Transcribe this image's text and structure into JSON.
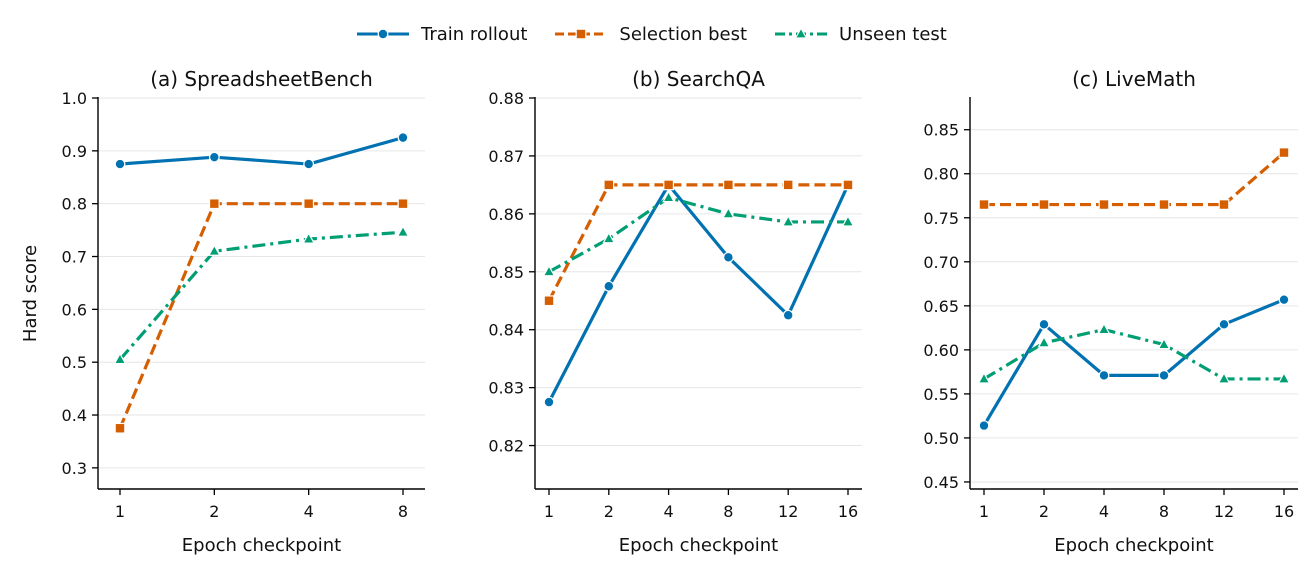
{
  "colors": {
    "train": "#0072b2",
    "selection": "#d55e00",
    "unseen": "#009e73",
    "grid": "#e6e6e6",
    "axis": "#000000"
  },
  "legend": [
    {
      "key": "train",
      "label": "Train rollout",
      "dash": "solid",
      "marker": "circle"
    },
    {
      "key": "selection",
      "label": "Selection best",
      "dash": "dashed",
      "marker": "square"
    },
    {
      "key": "unseen",
      "label": "Unseen test",
      "dash": "dashdot",
      "marker": "triangle"
    }
  ],
  "chart_data": [
    {
      "type": "line",
      "title": "(a) SpreadsheetBench",
      "xlabel": "Epoch checkpoint",
      "ylabel": "Hard score",
      "categories": [
        "1",
        "2",
        "4",
        "8"
      ],
      "ylim": [
        0.26,
        1.0
      ],
      "yticks": [
        0.3,
        0.4,
        0.5,
        0.6,
        0.7,
        0.8,
        0.9,
        1.0
      ],
      "ytick_labels": [
        "0.3",
        "0.4",
        "0.5",
        "0.6",
        "0.7",
        "0.8",
        "0.9",
        "1.0"
      ],
      "grid": true,
      "series": [
        {
          "name": "Train rollout",
          "key": "train",
          "values": [
            0.875,
            0.888,
            0.875,
            0.925
          ]
        },
        {
          "name": "Selection best",
          "key": "selection",
          "values": [
            0.375,
            0.8,
            0.8,
            0.8
          ]
        },
        {
          "name": "Unseen test",
          "key": "unseen",
          "values": [
            0.505,
            0.71,
            0.733,
            0.746
          ]
        }
      ]
    },
    {
      "type": "line",
      "title": "(b) SearchQA",
      "xlabel": "Epoch checkpoint",
      "ylabel": "",
      "categories": [
        "1",
        "2",
        "4",
        "8",
        "12",
        "16"
      ],
      "ylim": [
        0.8125,
        0.88
      ],
      "yticks": [
        0.82,
        0.83,
        0.84,
        0.85,
        0.86,
        0.87,
        0.88
      ],
      "ytick_labels": [
        "0.82",
        "0.83",
        "0.84",
        "0.85",
        "0.86",
        "0.87",
        "0.88"
      ],
      "grid": true,
      "series": [
        {
          "name": "Train rollout",
          "key": "train",
          "values": [
            0.8275,
            0.8475,
            0.865,
            0.8525,
            0.8425,
            0.865
          ]
        },
        {
          "name": "Selection best",
          "key": "selection",
          "values": [
            0.845,
            0.865,
            0.865,
            0.865,
            0.865,
            0.865
          ]
        },
        {
          "name": "Unseen test",
          "key": "unseen",
          "values": [
            0.85,
            0.8557,
            0.8628,
            0.86,
            0.8586,
            0.8586
          ]
        }
      ]
    },
    {
      "type": "line",
      "title": "(c) LiveMath",
      "xlabel": "Epoch checkpoint",
      "ylabel": "",
      "categories": [
        "1",
        "2",
        "4",
        "8",
        "12",
        "16"
      ],
      "ylim": [
        0.442,
        0.886
      ],
      "yticks": [
        0.45,
        0.5,
        0.55,
        0.6,
        0.65,
        0.7,
        0.75,
        0.8,
        0.85
      ],
      "ytick_labels": [
        "0.45",
        "0.50",
        "0.55",
        "0.60",
        "0.65",
        "0.70",
        "0.75",
        "0.80",
        "0.85"
      ],
      "grid": true,
      "series": [
        {
          "name": "Train rollout",
          "key": "train",
          "values": [
            0.514,
            0.629,
            0.571,
            0.571,
            0.629,
            0.657
          ]
        },
        {
          "name": "Selection best",
          "key": "selection",
          "values": [
            0.765,
            0.765,
            0.765,
            0.765,
            0.765,
            0.824
          ]
        },
        {
          "name": "Unseen test",
          "key": "unseen",
          "values": [
            0.567,
            0.608,
            0.623,
            0.606,
            0.567,
            0.567
          ]
        }
      ]
    }
  ]
}
